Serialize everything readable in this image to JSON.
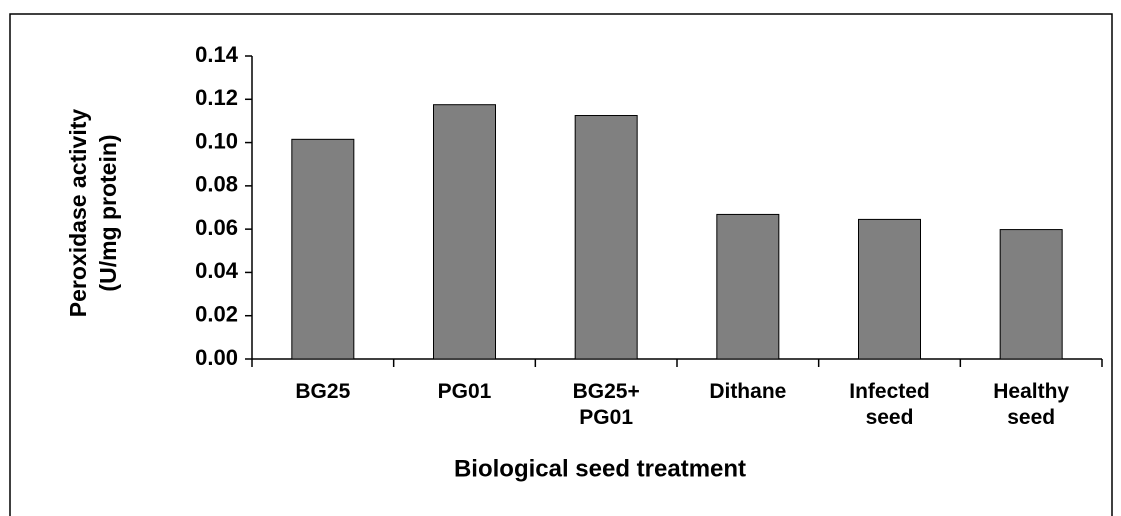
{
  "chart_data": {
    "type": "bar",
    "x_label": "Biological seed treatment",
    "y_label": [
      "Peroxidase activity",
      "(U/mg protein)"
    ],
    "categories": [
      "BG25",
      "PG01",
      "BG25+ PG01",
      "Dithane",
      "Infected seed",
      "Healthy seed"
    ],
    "values": [
      0.1015,
      0.1175,
      0.1125,
      0.0668,
      0.0645,
      0.0598
    ],
    "color": "#808080",
    "ylim": [
      0,
      0.14
    ],
    "yticks": [
      {
        "value": 0,
        "label": "0.00"
      },
      {
        "value": 0.02,
        "label": "0.02"
      },
      {
        "value": 0.04,
        "label": "0.04"
      },
      {
        "value": 0.06,
        "label": "0.06"
      },
      {
        "value": 0.08,
        "label": "0.08"
      },
      {
        "value": 0.1,
        "label": "0.10"
      },
      {
        "value": 0.12,
        "label": "0.12"
      },
      {
        "value": 0.14,
        "label": "0.14"
      }
    ],
    "grid": false
  }
}
